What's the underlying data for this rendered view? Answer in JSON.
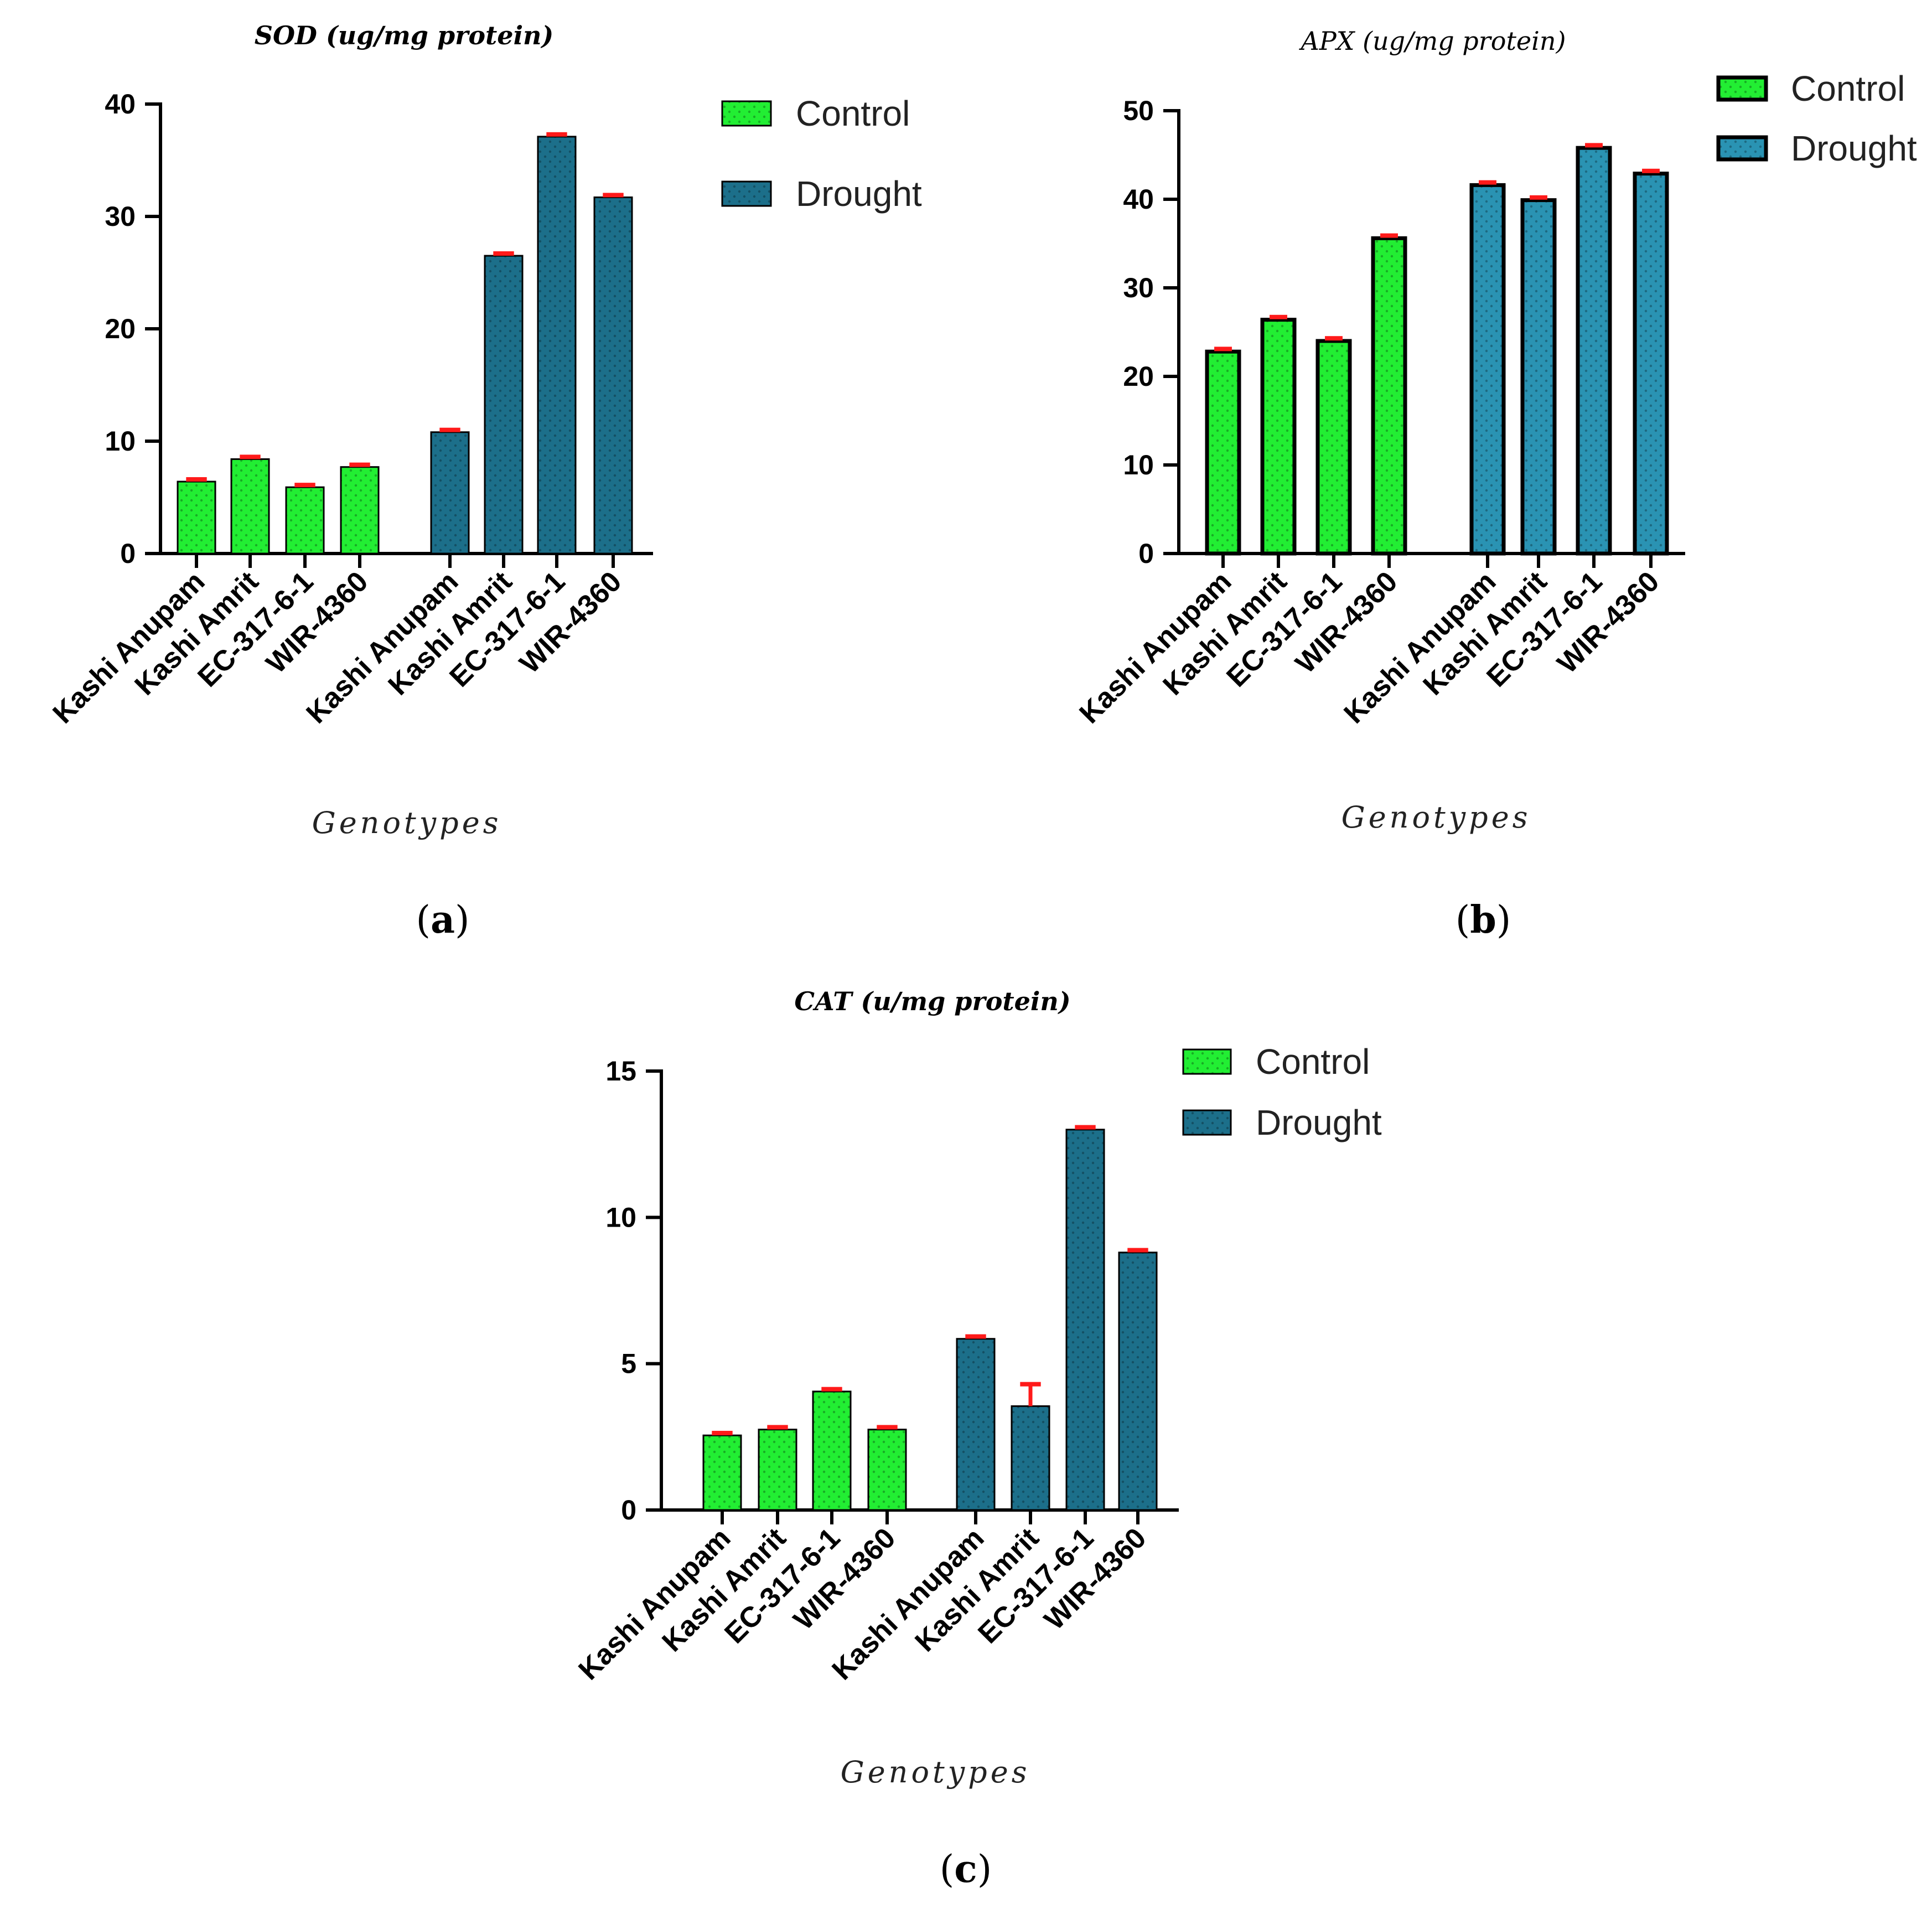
{
  "chart_data": [
    {
      "id": "a",
      "panel_label": "a",
      "type": "bar",
      "title": "SOD (ug/mg protein)",
      "xlabel": "Genotypes",
      "ylabel": "",
      "ylim": [
        0,
        40
      ],
      "yticks": [
        0,
        10,
        20,
        30,
        40
      ],
      "ytick_labels": [
        "0",
        "10",
        "20",
        "30",
        "40"
      ],
      "legend_position": "top-right",
      "error_color": "#ff1a1a",
      "series": [
        {
          "name": "Control",
          "color": "#22ee33",
          "categories": [
            "Kashi Anupam",
            "Kashi Amrit",
            "EC-317-6-1",
            "WIR-4360"
          ],
          "values": [
            6.4,
            8.4,
            5.9,
            7.7
          ],
          "errors": [
            0.2,
            0.2,
            0.2,
            0.2
          ]
        },
        {
          "name": "Drought",
          "color": "#1c6f8a",
          "categories": [
            "Kashi Anupam",
            "Kashi Amrit",
            "EC-317-6-1",
            "WIR-4360"
          ],
          "values": [
            10.8,
            26.5,
            37.1,
            31.7
          ],
          "errors": [
            0.2,
            0.2,
            0.2,
            0.2
          ]
        }
      ]
    },
    {
      "id": "b",
      "panel_label": "b",
      "type": "bar",
      "title": "APX (ug/mg protein)",
      "xlabel": "Genotypes",
      "ylabel": "",
      "ylim": [
        0,
        50
      ],
      "yticks": [
        0,
        10,
        20,
        30,
        40,
        50
      ],
      "ytick_labels": [
        "0",
        "10",
        "20",
        "30",
        "40",
        "50"
      ],
      "legend_position": "top-right",
      "error_color": "#ff1a1a",
      "series": [
        {
          "name": "Control",
          "color": "#22ee33",
          "categories": [
            "Kashi Anupam",
            "Kashi Amrit",
            "EC-317-6-1",
            "WIR-4360"
          ],
          "values": [
            22.8,
            26.4,
            24.0,
            35.6
          ],
          "errors": [
            0.3,
            0.3,
            0.3,
            0.3
          ]
        },
        {
          "name": "Drought",
          "color": "#2a93b3",
          "categories": [
            "Kashi Anupam",
            "Kashi Amrit",
            "EC-317-6-1",
            "WIR-4360"
          ],
          "values": [
            41.6,
            39.9,
            45.8,
            42.9
          ],
          "errors": [
            0.3,
            0.3,
            0.3,
            0.3
          ]
        }
      ]
    },
    {
      "id": "c",
      "panel_label": "c",
      "type": "bar",
      "title": "CAT (u/mg protein)",
      "xlabel": "Genotypes",
      "ylabel": "",
      "ylim": [
        0,
        15
      ],
      "yticks": [
        0,
        5,
        10,
        15
      ],
      "ytick_labels": [
        "0",
        "5",
        "10",
        "15"
      ],
      "legend_position": "top-right",
      "error_color": "#ff1a1a",
      "series": [
        {
          "name": "Control",
          "color": "#22ee33",
          "categories": [
            "Kashi Anupam",
            "Kashi Amrit",
            "EC-317-6-1",
            "WIR-4360"
          ],
          "values": [
            2.55,
            2.75,
            4.05,
            2.75
          ],
          "errors": [
            0.08,
            0.08,
            0.08,
            0.08
          ]
        },
        {
          "name": "Drought",
          "color": "#1c6f8a",
          "categories": [
            "Kashi Anupam",
            "Kashi Amrit",
            "EC-317-6-1",
            "WIR-4360"
          ],
          "values": [
            5.85,
            3.55,
            13.0,
            8.8
          ],
          "errors": [
            0.08,
            0.75,
            0.08,
            0.08
          ]
        }
      ]
    }
  ]
}
